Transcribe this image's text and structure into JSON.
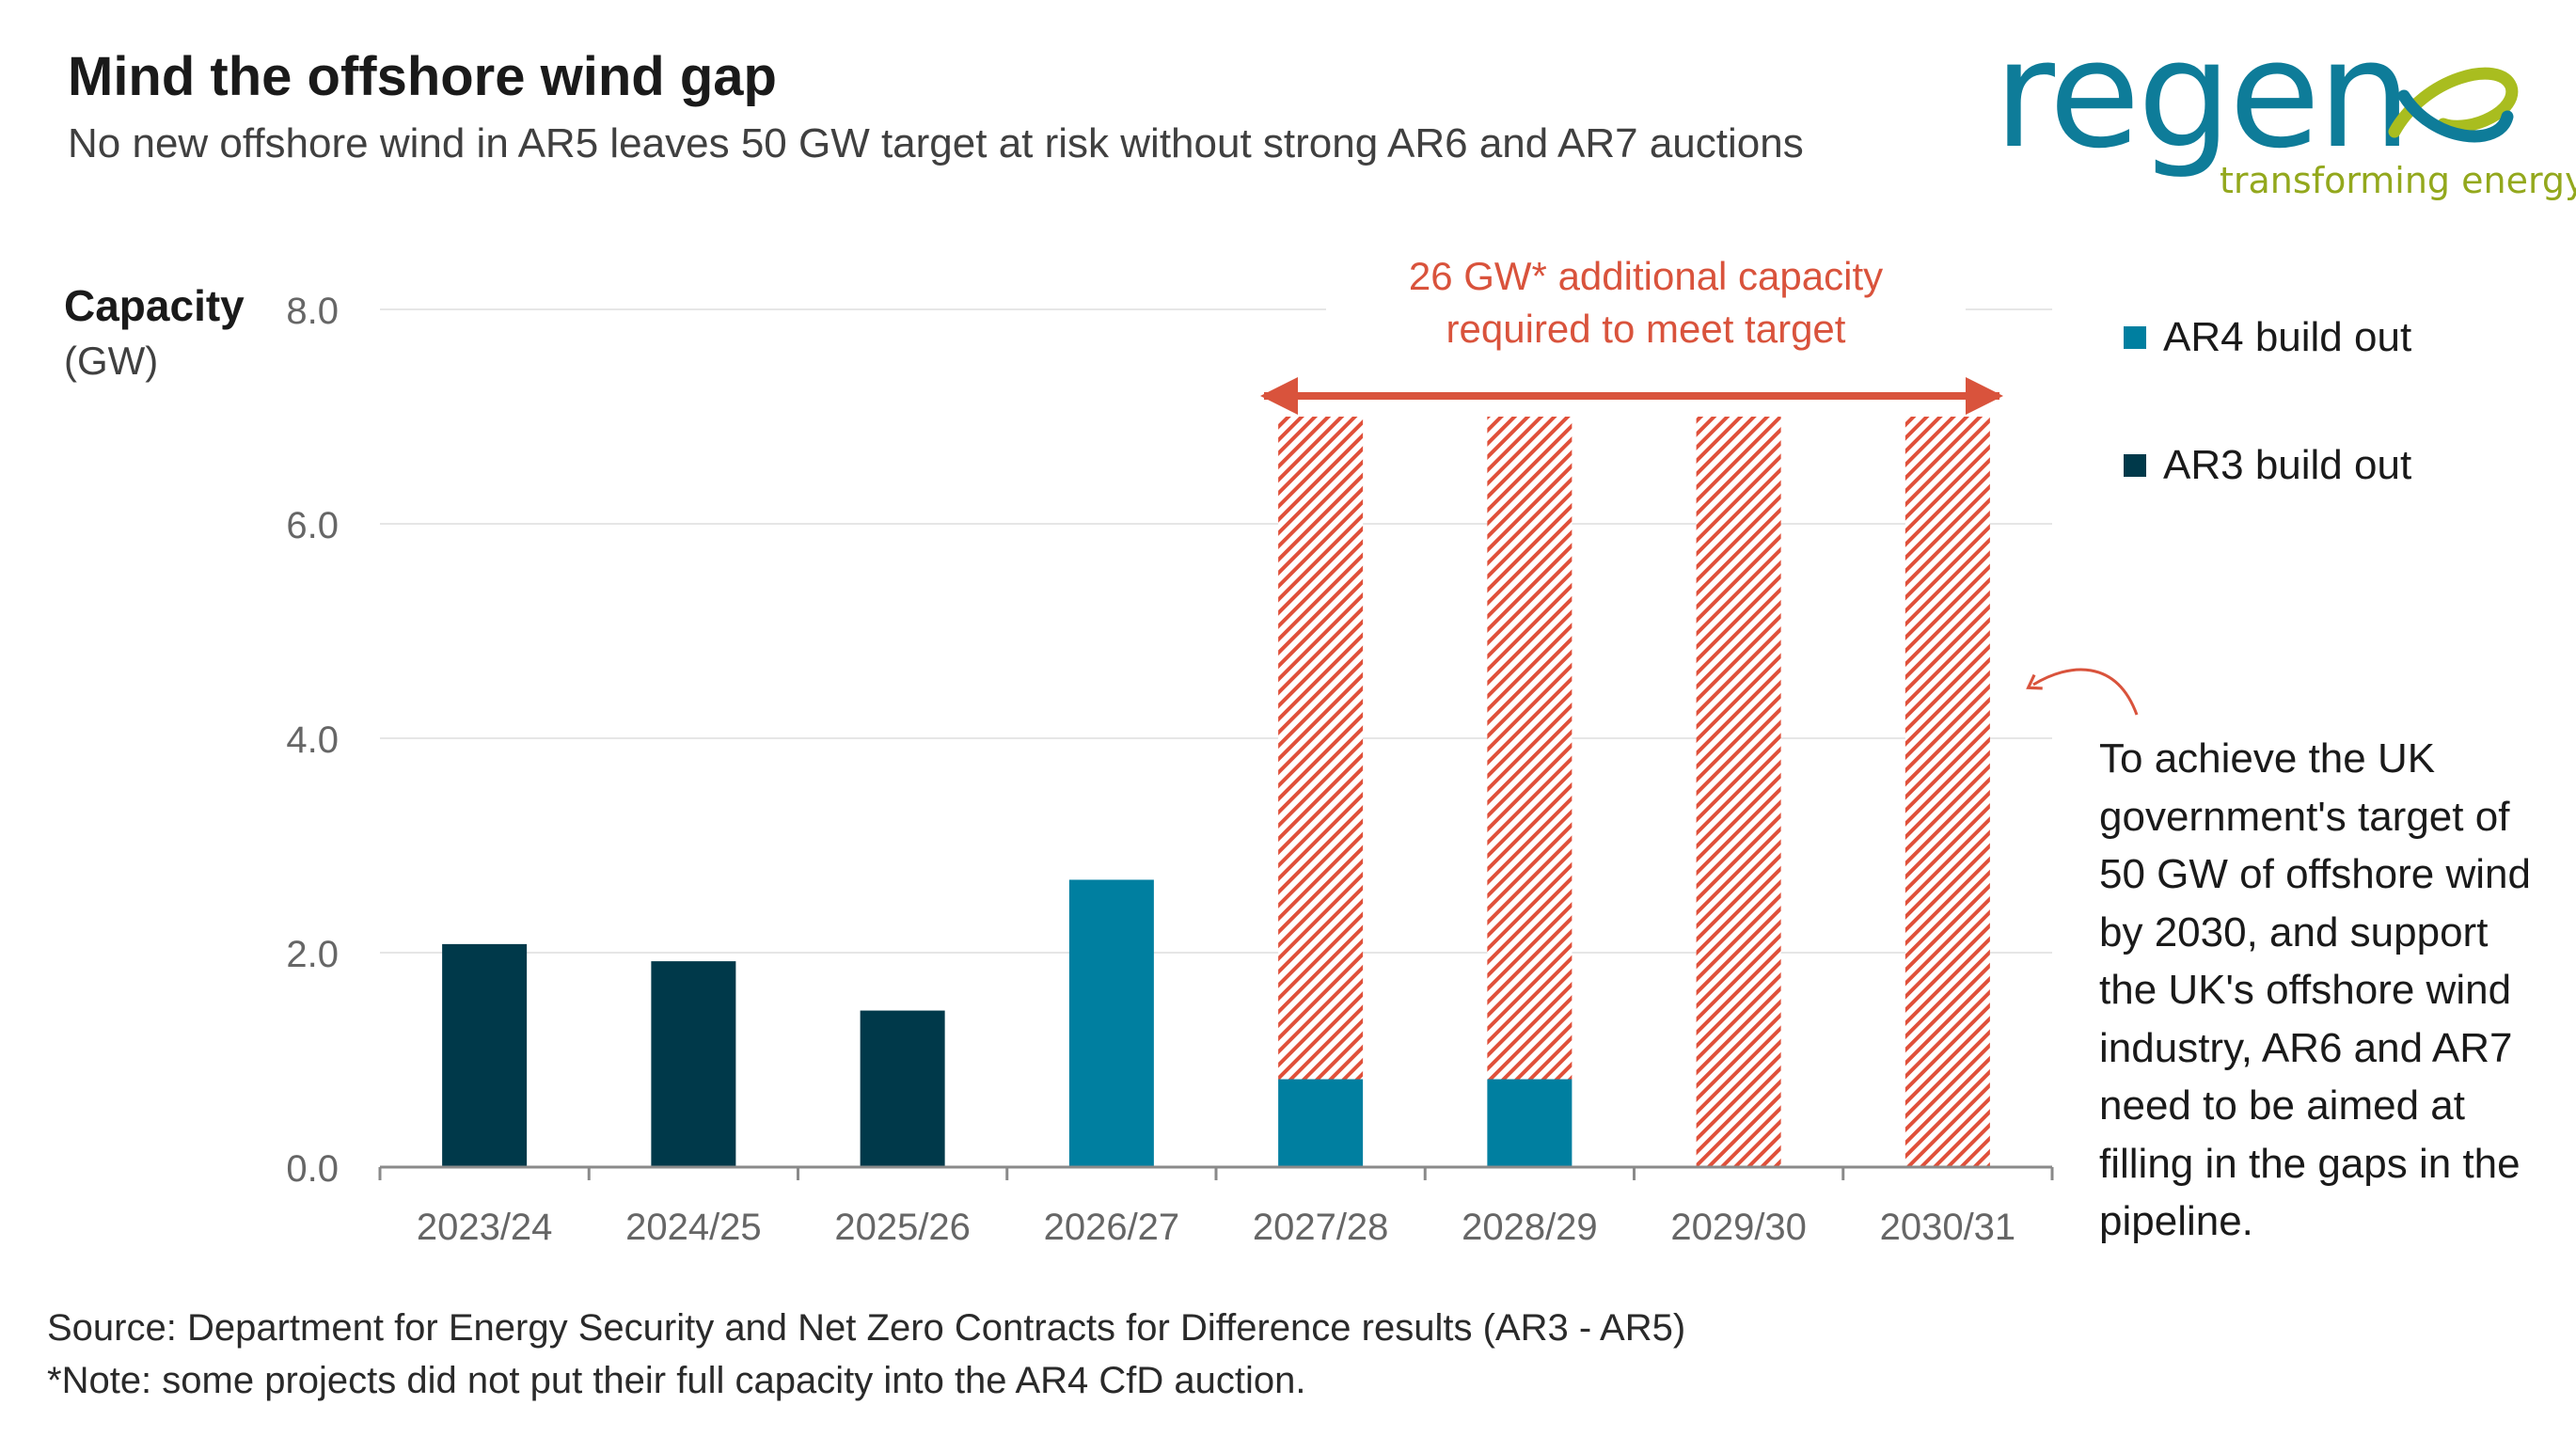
{
  "header": {
    "title": "Mind the offshore wind gap",
    "subtitle": "No new offshore wind in AR5 leaves 50 GW target at risk without strong AR6 and AR7 auctions"
  },
  "logo": {
    "name": "regen",
    "tagline": "transforming energy"
  },
  "colors": {
    "ar3": "#00394a",
    "ar4": "#007fa0",
    "gap": "#e0503a",
    "axis_text": "#666666",
    "grid": "#e6e6e6"
  },
  "chart_data": {
    "type": "bar",
    "stacked": true,
    "title": "Mind the offshore wind gap",
    "ylabel": "Capacity",
    "yunit": "(GW)",
    "ylim": [
      0,
      8
    ],
    "yticks": [
      0,
      2,
      4,
      6,
      8
    ],
    "ytick_labels": [
      "0.0",
      "2.0",
      "4.0",
      "6.0",
      "8.0"
    ],
    "categories": [
      "2023/24",
      "2024/25",
      "2025/26",
      "2026/27",
      "2027/28",
      "2028/29",
      "2029/30",
      "2030/31"
    ],
    "series": [
      {
        "name": "AR3 build out",
        "values": [
          2.08,
          1.92,
          1.46,
          0,
          0,
          0,
          0,
          0
        ]
      },
      {
        "name": "AR4 build out",
        "values": [
          0,
          0,
          0,
          2.68,
          0.82,
          0.82,
          0,
          0
        ]
      },
      {
        "name": "Additional capacity required",
        "values": [
          0,
          0,
          0,
          0,
          6.18,
          6.18,
          7.0,
          7.0
        ],
        "pattern": "hatched"
      }
    ],
    "legend": [
      "AR4 build out",
      "AR3 build out"
    ],
    "gap_annotation": "26 GW* additional capacity required to meet target",
    "gap_annotation_lines": [
      "26 GW* additional capacity",
      "required to meet target"
    ],
    "side_annotation": "To achieve the UK government's target of 50 GW of offshore wind by 2030, and support the UK's offshore wind industry, AR6 and AR7 need to be aimed at filling in the gaps in the pipeline."
  },
  "footer": {
    "source": "Source: Department for Energy Security and Net Zero Contracts for Difference results (AR3 - AR5)",
    "note": "*Note: some projects did not put their full capacity into the AR4 CfD auction."
  }
}
